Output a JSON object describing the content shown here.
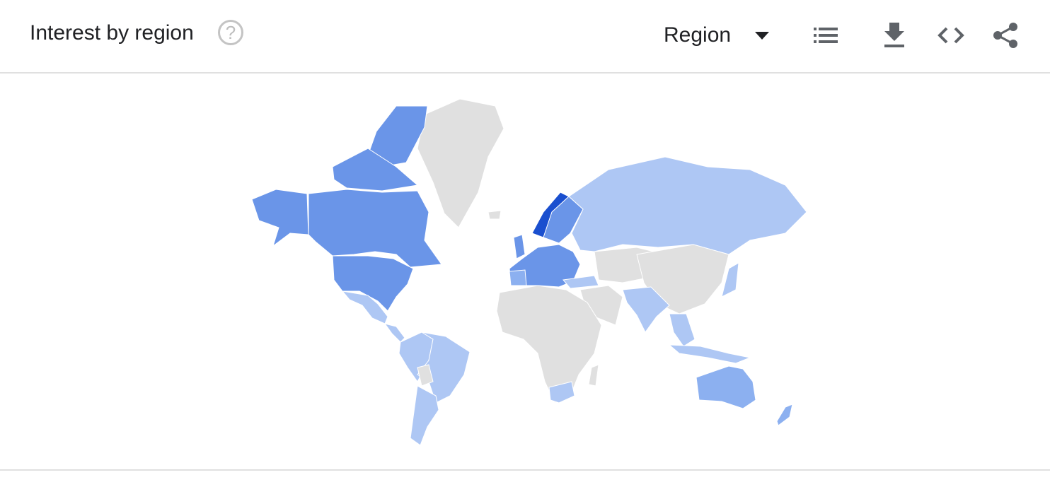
{
  "header": {
    "title": "Interest by region",
    "help_icon": "help-circle-icon",
    "region_select": {
      "value": "Region",
      "icon": "caret-down-icon"
    },
    "tools": [
      {
        "name": "list-view",
        "icon": "list-icon"
      },
      {
        "name": "download",
        "icon": "download-icon"
      },
      {
        "name": "embed",
        "icon": "code-icon"
      },
      {
        "name": "share",
        "icon": "share-icon"
      }
    ]
  },
  "map": {
    "type": "choropleth-world",
    "colors": {
      "no_data": "#e0e0e0",
      "low": "#aec7f4",
      "medium_low": "#8cb0f0",
      "medium": "#6a95e8",
      "high": "#4d7fe0",
      "highest": "#1a4fcf"
    }
  }
}
